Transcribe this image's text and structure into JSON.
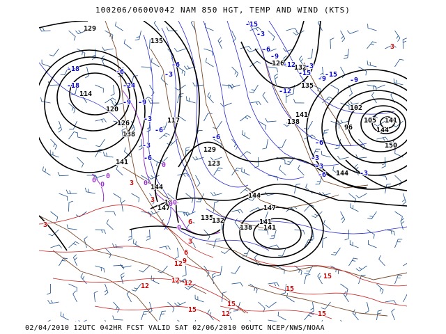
{
  "header": {
    "title": "100206/0600V042 NAM 850 HGT, TEMP AND WIND (KTS)"
  },
  "footer": {
    "caption": "02/04/2010 12UTC 042HR FCST VALID SAT 02/06/2010 06UTC  NCEP/NWS/NOAA"
  },
  "colors": {
    "height_contour": "#000000",
    "temp_warm": "#cc0000",
    "temp_zero": "#9933cc",
    "temp_cold": "#0000cc",
    "wind_barbs": "#1a4f8f",
    "borders": "#7a4a2a"
  },
  "height_labels": [
    "129",
    "135",
    "114",
    "120",
    "126",
    "138",
    "141",
    "144",
    "147",
    "150",
    "135",
    "132",
    "138",
    "141",
    "144",
    "147",
    "141",
    "126",
    "132",
    "135",
    "138",
    "141",
    "144",
    "102",
    "96",
    "105",
    "141",
    "144",
    "150",
    "123",
    "129",
    "117"
  ],
  "temp_labels": {
    "cold": [
      "-15",
      "-3",
      "-6",
      "-9",
      "-12",
      "-15",
      "-18",
      "-18",
      "-24",
      "-6",
      "-9",
      "-3",
      "-6",
      "-9",
      "-3",
      "-6",
      "-3",
      "-6",
      "-3",
      "-9",
      "-12",
      "-15",
      "-6",
      "-3",
      "-3",
      "-6",
      "-9",
      "-3",
      "-6"
    ],
    "zero": [
      "0",
      "0",
      "0",
      "0",
      "0",
      "0",
      "0",
      "0"
    ],
    "warm": [
      "3",
      "3",
      "3",
      "6",
      "3",
      "6",
      "9",
      "12",
      "12",
      "12",
      "12",
      "15",
      "12",
      "15",
      "15",
      "15",
      "12",
      "15",
      "3"
    ]
  }
}
